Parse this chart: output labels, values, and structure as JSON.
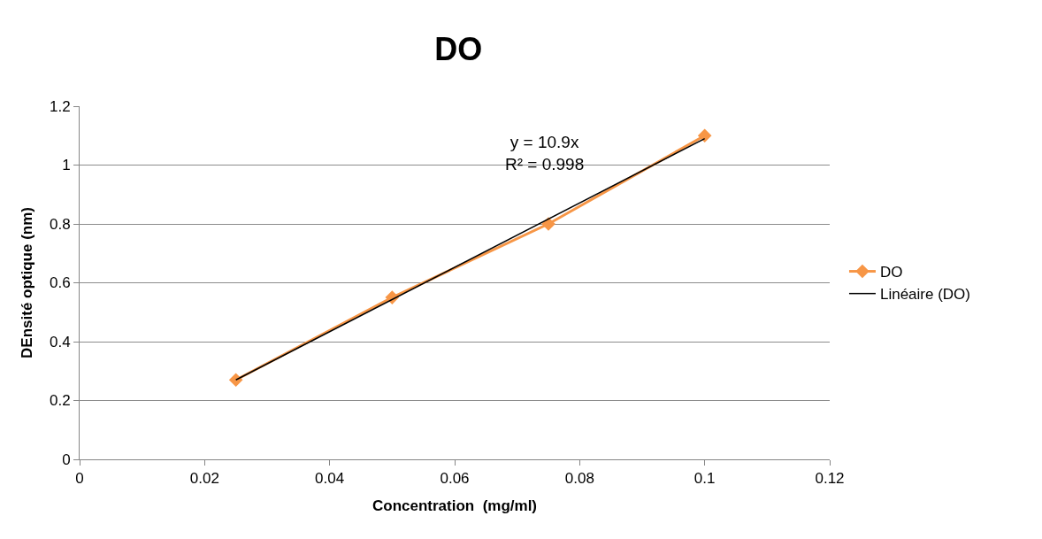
{
  "chart_data": {
    "type": "line",
    "title": "DO",
    "xlabel": "Concentration  (mg/ml)",
    "ylabel": "DEnsité optique (nm)",
    "xlim": [
      0,
      0.12
    ],
    "xticks": [
      0,
      0.02,
      0.04,
      0.06,
      0.08,
      0.1,
      0.12
    ],
    "ylim": [
      0,
      1.2
    ],
    "yticks": [
      0,
      0.2,
      0.4,
      0.6,
      0.8,
      1,
      1.2
    ],
    "grid": "y",
    "legend": "right",
    "series": [
      {
        "name": "DO",
        "color": "#f79646",
        "marker": "diamond",
        "x": [
          0.025,
          0.05,
          0.075,
          0.1
        ],
        "values": [
          0.27,
          0.55,
          0.8,
          1.1
        ]
      },
      {
        "name": "Linéaire (DO)",
        "color": "#000000",
        "marker": "none",
        "x": [
          0.025,
          0.1
        ],
        "values": [
          0.27,
          1.09
        ]
      }
    ],
    "annotations": [
      "y = 10.9x\nR² = 0.998"
    ]
  }
}
